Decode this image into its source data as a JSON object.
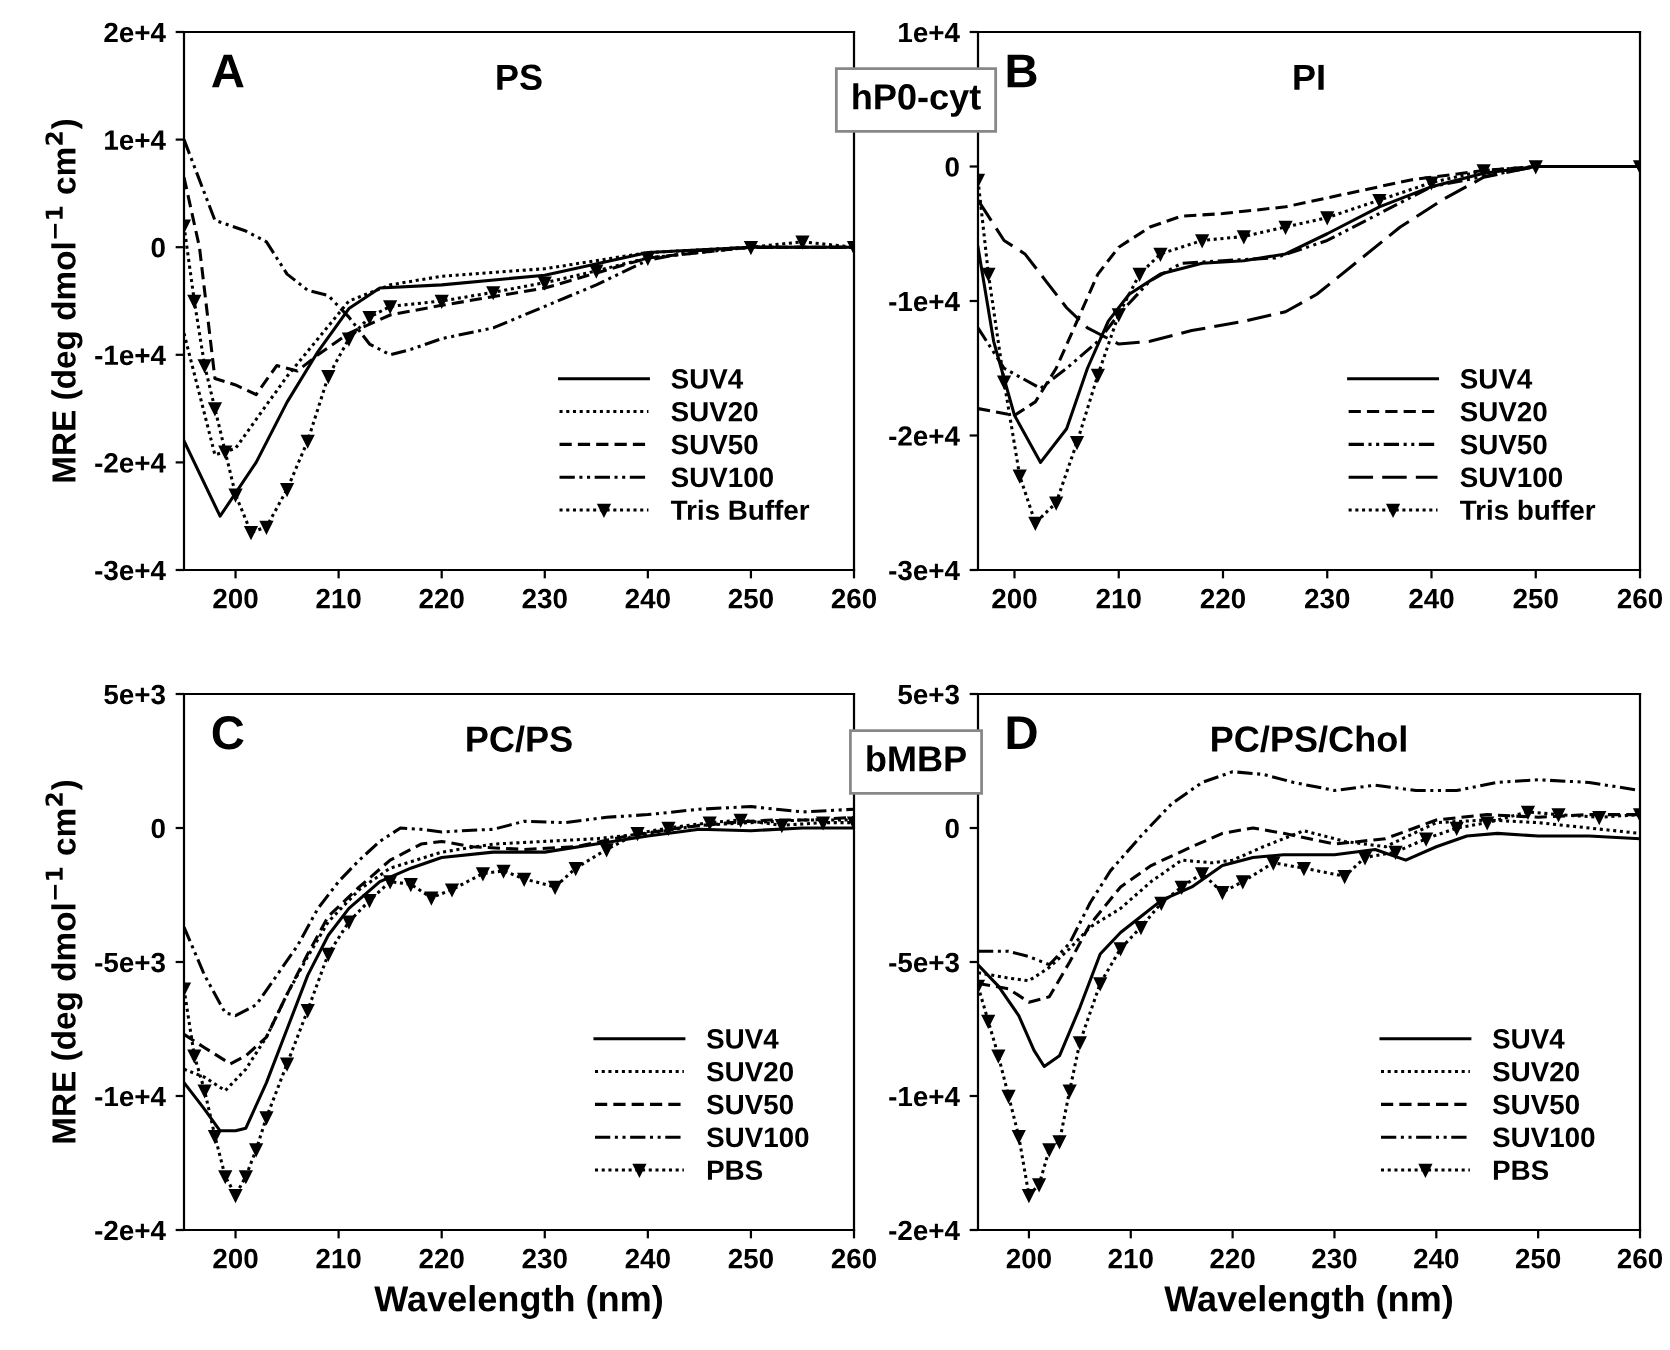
{
  "chart_data": [
    {
      "type": "line",
      "title": "PS",
      "ylabel": "MRE (deg dmol$^{−1}$ cm$^{2}$)",
      "annotations": [
        "A",
        "hP0-cyt"
      ],
      "xlim": [
        195,
        260
      ],
      "xticks": [
        200,
        210,
        220,
        230,
        240,
        250,
        260
      ],
      "ylim": [
        -30000,
        20000
      ],
      "yticks": [
        {
          "value": -30000,
          "label": "-3e+4"
        },
        {
          "value": -20000,
          "label": "-2e+4"
        },
        {
          "value": -10000,
          "label": "-1e+4"
        },
        0,
        {
          "value": 10000,
          "label": "1e+4"
        },
        {
          "value": 20000,
          "label": "2e+4"
        }
      ],
      "grid": false,
      "legend": "bottom right",
      "series": [
        {
          "name": "SUV4",
          "color": "#000000",
          "line_style": "solid",
          "x": [
            195,
            198.5,
            202,
            205,
            208,
            211,
            214,
            220,
            230,
            240,
            250,
            260
          ],
          "values": [
            -18000,
            -25000,
            -20000,
            -14400,
            -9700,
            -5700,
            -3800,
            -3500,
            -2600,
            -500,
            0,
            0
          ]
        },
        {
          "name": "SUV20",
          "color": "#000000",
          "line_style": "dotted",
          "x": [
            195,
            198,
            200,
            202,
            205,
            208,
            211,
            215,
            220,
            230,
            240,
            250,
            260
          ],
          "values": [
            -8000,
            -19300,
            -18700,
            -16000,
            -12000,
            -8500,
            -5000,
            -3500,
            -2700,
            -2000,
            -500,
            0,
            0
          ]
        },
        {
          "name": "SUV50",
          "color": "#000000",
          "line_style": "dashed",
          "x": [
            195,
            196.5,
            198,
            200,
            202,
            204,
            206,
            208,
            211,
            215,
            220,
            230,
            240,
            250,
            260
          ],
          "values": [
            6500,
            0,
            -12200,
            -12800,
            -13700,
            -11000,
            -11500,
            -10000,
            -8000,
            -6300,
            -5400,
            -3800,
            -1000,
            0,
            0
          ]
        },
        {
          "name": "SUV100",
          "color": "#000000",
          "line_style": "dashdot",
          "x": [
            195,
            198,
            201,
            203,
            205,
            207,
            209,
            211,
            213,
            215,
            217,
            220,
            225,
            230,
            235,
            240,
            245,
            250,
            260
          ],
          "values": [
            10000,
            2500,
            1500,
            500,
            -2500,
            -4000,
            -4500,
            -6500,
            -9000,
            -10000,
            -9500,
            -8500,
            -7500,
            -5500,
            -3500,
            -1200,
            -300,
            0,
            0
          ]
        },
        {
          "name": "Tris Buffer",
          "color": "#000000",
          "line_style": "dotted",
          "marker": "triangle",
          "x": [
            195,
            196,
            197,
            198,
            199,
            200,
            201.5,
            203,
            205,
            207,
            209,
            211,
            213,
            215,
            220,
            225,
            230,
            235,
            240,
            250,
            255,
            260
          ],
          "values": [
            2000,
            -5000,
            -11000,
            -15000,
            -19000,
            -23000,
            -26500,
            -26000,
            -22500,
            -18000,
            -12000,
            -8500,
            -6500,
            -5500,
            -5000,
            -4200,
            -3300,
            -2200,
            -1000,
            0,
            500,
            0
          ]
        }
      ]
    },
    {
      "type": "line",
      "title": "PI",
      "annotations": [
        "B"
      ],
      "xlim": [
        196.5,
        260
      ],
      "xticks": [
        200,
        210,
        220,
        230,
        240,
        250,
        260
      ],
      "ylim": [
        -30000,
        10000
      ],
      "yticks": [
        {
          "value": -30000,
          "label": "-3e+4"
        },
        {
          "value": -20000,
          "label": "-2e+4"
        },
        {
          "value": -10000,
          "label": "-1e+4"
        },
        0,
        {
          "value": 10000,
          "label": "1e+4"
        }
      ],
      "grid": false,
      "legend": "bottom right",
      "series": [
        {
          "name": "SUV4",
          "color": "#000000",
          "line_style": "solid",
          "x": [
            196.5,
            198,
            200,
            202.5,
            205,
            207,
            209,
            211,
            214,
            218,
            222,
            226,
            230,
            235,
            240,
            245,
            250,
            260
          ],
          "values": [
            -6000,
            -13000,
            -18500,
            -22000,
            -19500,
            -15000,
            -11500,
            -9500,
            -8000,
            -7200,
            -7000,
            -6500,
            -5000,
            -3000,
            -1500,
            -500,
            0,
            0
          ]
        },
        {
          "name": "SUV20",
          "color": "#000000",
          "line_style": "dashed",
          "x": [
            196.5,
            200,
            202,
            204,
            206,
            208,
            210,
            213,
            216,
            220,
            226,
            232,
            238,
            245,
            250,
            260
          ],
          "values": [
            -18000,
            -18500,
            -17500,
            -15000,
            -11500,
            -8000,
            -6000,
            -4500,
            -3700,
            -3500,
            -3000,
            -2000,
            -1000,
            -300,
            0,
            0
          ]
        },
        {
          "name": "SUV50",
          "color": "#000000",
          "line_style": "dashdot",
          "x": [
            196.5,
            199,
            202.5,
            205,
            208,
            210,
            213,
            216,
            220,
            225,
            230,
            235,
            240,
            250,
            260
          ],
          "values": [
            -12000,
            -15000,
            -16500,
            -15000,
            -13000,
            -11000,
            -8500,
            -7200,
            -7000,
            -6800,
            -5500,
            -3500,
            -1500,
            0,
            0
          ]
        },
        {
          "name": "SUV100",
          "color": "#000000",
          "line_style": "longdash",
          "x": [
            196.5,
            199,
            201,
            203,
            205,
            207,
            210,
            213,
            217,
            222,
            226,
            229,
            233,
            237,
            241,
            245,
            250,
            260
          ],
          "values": [
            -2500,
            -5500,
            -6500,
            -8500,
            -10500,
            -12000,
            -13200,
            -13000,
            -12200,
            -11500,
            -10800,
            -9500,
            -7000,
            -4500,
            -2500,
            -800,
            0,
            0
          ]
        },
        {
          "name": "Tris buffer",
          "color": "#000000",
          "line_style": "dotted",
          "marker": "triangle",
          "x": [
            196.5,
            197.5,
            199,
            200.5,
            202,
            204,
            206,
            208,
            210,
            212,
            214,
            218,
            222,
            226,
            230,
            235,
            240,
            245,
            250,
            260
          ],
          "values": [
            -1000,
            -8000,
            -16000,
            -23000,
            -26500,
            -25000,
            -20500,
            -15500,
            -11000,
            -8000,
            -6500,
            -5500,
            -5200,
            -4500,
            -3800,
            -2500,
            -1200,
            -300,
            0,
            0
          ]
        }
      ]
    },
    {
      "type": "line",
      "title": "PC/PS",
      "xlabel": "Wavelength (nm)",
      "ylabel": "MRE (deg dmol$^{−1}$ cm$^{2}$)",
      "annotations": [
        "C",
        "bMBP"
      ],
      "xlim": [
        195,
        260
      ],
      "xticks": [
        200,
        210,
        220,
        230,
        240,
        250,
        260
      ],
      "ylim": [
        -15000,
        5000
      ],
      "yticks": [
        {
          "value": -15000,
          "label": "-2e+4"
        },
        {
          "value": -10000,
          "label": "-1e+4"
        },
        {
          "value": -5000,
          "label": "-5e+3"
        },
        0,
        {
          "value": 5000,
          "label": "5e+3"
        }
      ],
      "grid": false,
      "legend": "bottom right",
      "series": [
        {
          "name": "SUV4",
          "color": "#000000",
          "line_style": "solid",
          "x": [
            195,
            197,
            198.5,
            200,
            201,
            203,
            205,
            207,
            209,
            211,
            214,
            217,
            220,
            225,
            230,
            235,
            240,
            245,
            250,
            255,
            260
          ],
          "values": [
            -9500,
            -10500,
            -11300,
            -11300,
            -11200,
            -9500,
            -7500,
            -5500,
            -4000,
            -3000,
            -2000,
            -1500,
            -1100,
            -900,
            -900,
            -600,
            -300,
            -50,
            -100,
            0,
            0
          ]
        },
        {
          "name": "SUV20",
          "color": "#000000",
          "line_style": "dotted",
          "x": [
            195,
            197,
            199,
            201,
            203,
            205,
            207,
            209,
            212,
            215,
            220,
            225,
            230,
            235,
            240,
            245,
            250,
            255,
            260
          ],
          "values": [
            -9000,
            -9300,
            -9800,
            -9000,
            -7800,
            -6200,
            -4800,
            -3500,
            -2300,
            -1500,
            -900,
            -600,
            -500,
            -400,
            -200,
            100,
            200,
            300,
            300
          ]
        },
        {
          "name": "SUV50",
          "color": "#000000",
          "line_style": "dashed",
          "x": [
            195,
            197,
            199.5,
            201,
            203,
            205,
            207,
            209,
            212,
            215,
            218,
            220,
            223,
            228,
            233,
            238,
            243,
            248,
            252,
            256,
            260
          ],
          "values": [
            -7700,
            -8200,
            -8800,
            -8500,
            -7800,
            -6200,
            -4700,
            -3300,
            -2200,
            -1200,
            -600,
            -500,
            -700,
            -800,
            -700,
            -300,
            0,
            200,
            300,
            300,
            400
          ]
        },
        {
          "name": "SUV100",
          "color": "#000000",
          "line_style": "dashdot",
          "x": [
            195,
            197,
            199,
            200,
            202,
            204,
            206,
            208,
            210,
            212,
            214,
            216,
            218,
            220,
            222,
            225,
            228,
            232,
            236,
            240,
            245,
            250,
            255,
            260
          ],
          "values": [
            -3700,
            -5500,
            -6900,
            -7000,
            -6600,
            -5500,
            -4400,
            -3000,
            -2000,
            -1200,
            -500,
            0,
            -50,
            -150,
            -100,
            -50,
            250,
            200,
            400,
            500,
            700,
            800,
            600,
            700
          ]
        },
        {
          "name": "PBS",
          "color": "#000000",
          "line_style": "dotted",
          "marker": "triangle",
          "x": [
            195,
            196,
            197,
            198,
            199,
            200,
            201,
            202,
            203,
            205,
            207,
            209,
            211,
            213,
            215,
            217,
            219,
            221,
            224,
            226,
            228,
            231,
            233,
            236,
            239,
            242,
            246,
            249,
            253,
            257,
            260
          ],
          "values": [
            -6000,
            -8500,
            -9800,
            -11500,
            -13000,
            -13700,
            -13000,
            -12000,
            -10800,
            -8800,
            -6800,
            -4700,
            -3500,
            -2700,
            -2000,
            -2100,
            -2600,
            -2300,
            -1700,
            -1600,
            -1900,
            -2200,
            -1500,
            -800,
            -200,
            0,
            200,
            300,
            100,
            200,
            200
          ]
        }
      ]
    },
    {
      "type": "line",
      "title": "PC/PS/Chol",
      "xlabel": "Wavelength (nm)",
      "annotations": [
        "D"
      ],
      "xlim": [
        195,
        260
      ],
      "xticks": [
        200,
        210,
        220,
        230,
        240,
        250,
        260
      ],
      "ylim": [
        -15000,
        5000
      ],
      "yticks": [
        {
          "value": -15000,
          "label": "-2e+4"
        },
        {
          "value": -10000,
          "label": "-1e+4"
        },
        {
          "value": -5000,
          "label": "-5e+3"
        },
        0,
        {
          "value": 5000,
          "label": "5e+3"
        }
      ],
      "grid": false,
      "legend": "bottom right",
      "series": [
        {
          "name": "SUV4",
          "color": "#000000",
          "line_style": "solid",
          "x": [
            195,
            197,
            199,
            200.5,
            201.5,
            203,
            205,
            207,
            209,
            211,
            213,
            216,
            219,
            222,
            225,
            230,
            234,
            237,
            240,
            243,
            246,
            250,
            255,
            260
          ],
          "values": [
            -5100,
            -5900,
            -7000,
            -8300,
            -8900,
            -8500,
            -6700,
            -4700,
            -3900,
            -3300,
            -2700,
            -2200,
            -1400,
            -1100,
            -1000,
            -1000,
            -800,
            -1200,
            -700,
            -300,
            -200,
            -300,
            -300,
            -400
          ]
        },
        {
          "name": "SUV20",
          "color": "#000000",
          "line_style": "dotted",
          "x": [
            195,
            198,
            200,
            202,
            204,
            206,
            209,
            212,
            215,
            218,
            220,
            223,
            227,
            231,
            235,
            240,
            245,
            250,
            255,
            260
          ],
          "values": [
            -5400,
            -5600,
            -5700,
            -5200,
            -4500,
            -3700,
            -3000,
            -2000,
            -1200,
            -1300,
            -1200,
            -700,
            -100,
            -500,
            -700,
            200,
            300,
            200,
            0,
            -200
          ]
        },
        {
          "name": "SUV50",
          "color": "#000000",
          "line_style": "dashed",
          "x": [
            195,
            198,
            200,
            202,
            204,
            206,
            209,
            212,
            216,
            219,
            222,
            225,
            230,
            235,
            240,
            245,
            250,
            255,
            260
          ],
          "values": [
            -5800,
            -6000,
            -6500,
            -6300,
            -5000,
            -3600,
            -2200,
            -1400,
            -700,
            -200,
            0,
            -200,
            -600,
            -400,
            300,
            500,
            400,
            500,
            500
          ]
        },
        {
          "name": "SUV100",
          "color": "#000000",
          "line_style": "dashdot",
          "x": [
            195,
            198,
            200,
            202,
            204,
            206,
            208,
            211,
            214,
            217,
            220,
            223,
            226,
            230,
            234,
            238,
            242,
            246,
            250,
            255,
            260
          ],
          "values": [
            -4600,
            -4600,
            -4800,
            -5100,
            -4300,
            -2800,
            -1600,
            -300,
            900,
            1700,
            2100,
            2000,
            1700,
            1400,
            1600,
            1400,
            1400,
            1700,
            1800,
            1700,
            1400
          ]
        },
        {
          "name": "PBS",
          "color": "#000000",
          "line_style": "dotted",
          "marker": "triangle",
          "x": [
            195,
            196,
            197,
            198,
            199,
            200,
            201,
            202,
            203,
            204,
            205,
            207,
            209,
            211,
            213,
            215,
            217,
            219,
            221,
            224,
            227,
            231,
            233,
            236,
            239,
            242,
            245,
            249,
            252,
            256,
            260
          ],
          "values": [
            -5900,
            -7200,
            -8500,
            -10000,
            -11500,
            -13700,
            -13300,
            -12000,
            -11700,
            -9800,
            -8000,
            -5800,
            -4500,
            -3700,
            -2800,
            -2200,
            -1700,
            -2400,
            -2000,
            -1300,
            -1500,
            -1800,
            -1100,
            -900,
            -400,
            0,
            200,
            600,
            500,
            400,
            500
          ]
        }
      ]
    }
  ]
}
